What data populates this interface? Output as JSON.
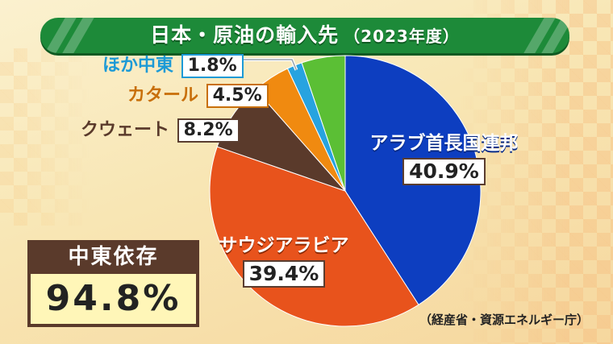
{
  "title": {
    "main": "日本・原油の輸入先",
    "sub": "（2023年度）"
  },
  "chart_data": {
    "type": "pie",
    "title": "日本・原油の輸入先（2023年度）",
    "unit": "%",
    "slices": [
      {
        "name": "アラブ首長国連邦",
        "value": 40.9,
        "label": "40.9%",
        "color": "#0d3ec0"
      },
      {
        "name": "サウジアラビア",
        "value": 39.4,
        "label": "39.4%",
        "color": "#e8531c"
      },
      {
        "name": "クウェート",
        "value": 8.2,
        "label": "8.2%",
        "color": "#5a3a2b"
      },
      {
        "name": "カタール",
        "value": 4.5,
        "label": "4.5%",
        "color": "#f08a10"
      },
      {
        "name": "ほか中東",
        "value": 1.8,
        "label": "1.8%",
        "color": "#27a3e0"
      },
      {
        "name": "",
        "value": 5.2,
        "label": "",
        "color": "#5bbf35"
      }
    ]
  },
  "dependency": {
    "label": "中東依存",
    "value": "94.8%"
  },
  "source": "（経産省・資源エネルギー庁）",
  "colors": {
    "title_bar": "#1d8a39",
    "dependency_head": "#5a3a2b",
    "dependency_fill": "#fff6b8"
  }
}
